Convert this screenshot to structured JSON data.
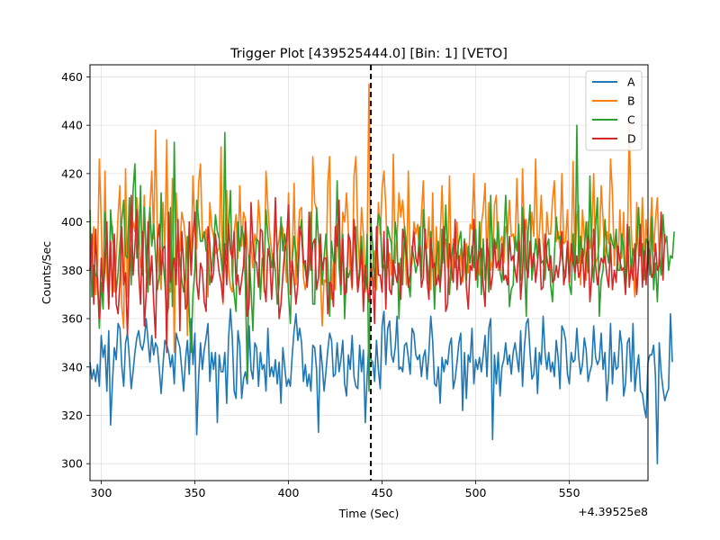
{
  "chart_data": {
    "type": "line",
    "title": "Trigger Plot [439525444.0] [Bin: 1] [VETO]",
    "xlabel": "Time (Sec)",
    "ylabel": "Counts/Sec",
    "x_offset_label": "+4.39525e8",
    "xlim": [
      294,
      592
    ],
    "ylim": [
      293,
      465
    ],
    "x_ticks": [
      300,
      350,
      400,
      450,
      500,
      550
    ],
    "y_ticks": [
      300,
      320,
      340,
      360,
      380,
      400,
      420,
      440,
      460
    ],
    "grid": true,
    "legend_position": "upper right",
    "trigger_line_x": 444,
    "x_start": 294,
    "x_step": 1,
    "series": [
      {
        "name": "A",
        "color": "#1f77b4",
        "values": [
          342,
          335,
          339,
          334,
          341,
          332,
          353,
          344,
          349,
          330,
          355,
          316,
          334,
          348,
          343,
          358,
          356,
          340,
          332,
          350,
          354,
          344,
          331,
          338,
          346,
          352,
          355,
          349,
          347,
          351,
          360,
          351,
          342,
          353,
          345,
          350,
          348,
          339,
          329,
          341,
          351,
          349,
          346,
          340,
          345,
          333,
          354,
          351,
          348,
          339,
          330,
          343,
          351,
          337,
          360,
          341,
          354,
          312,
          335,
          350,
          339,
          347,
          352,
          358,
          334,
          346,
          339,
          346,
          317,
          345,
          338,
          338,
          346,
          325,
          352,
          364,
          352,
          330,
          327,
          355,
          349,
          327,
          335,
          338,
          333,
          357,
          339,
          335,
          350,
          348,
          332,
          346,
          339,
          341,
          330,
          356,
          336,
          340,
          336,
          343,
          333,
          342,
          325,
          348,
          340,
          332,
          335,
          332,
          345,
          355,
          362,
          351,
          356,
          350,
          334,
          341,
          332,
          337,
          330,
          349,
          348,
          339,
          313,
          349,
          341,
          330,
          338,
          347,
          354,
          351,
          336,
          337,
          350,
          338,
          343,
          351,
          333,
          328,
          345,
          339,
          353,
          336,
          332,
          331,
          349,
          338,
          347,
          317,
          336,
          351,
          343,
          342,
          334,
          351,
          339,
          331,
          357,
          363,
          341,
          356,
          359,
          345,
          342,
          348,
          361,
          339,
          340,
          338,
          349,
          350,
          344,
          337,
          356,
          354,
          345,
          343,
          345,
          336,
          344,
          347,
          335,
          346,
          361,
          351,
          333,
          332,
          340,
          325,
          344,
          338,
          343,
          341,
          349,
          352,
          331,
          335,
          342,
          350,
          354,
          322,
          346,
          327,
          345,
          342,
          356,
          333,
          343,
          339,
          344,
          338,
          345,
          353,
          336,
          356,
          360,
          310,
          345,
          333,
          346,
          328,
          340,
          343,
          350,
          341,
          345,
          337,
          346,
          350,
          344,
          338,
          355,
          332,
          348,
          358,
          360,
          346,
          335,
          337,
          348,
          329,
          346,
          341,
          361,
          346,
          339,
          346,
          338,
          342,
          336,
          351,
          344,
          331,
          357,
          355,
          351,
          337,
          333,
          346,
          342,
          343,
          356,
          344,
          337,
          341,
          352,
          347,
          334,
          338,
          341,
          357,
          344,
          341,
          343,
          354,
          339,
          346,
          326,
          337,
          358,
          333,
          346,
          339,
          340,
          355,
          349,
          328,
          333,
          350,
          352,
          334,
          358,
          330,
          339,
          345,
          330,
          329,
          323,
          319,
          342,
          345,
          345,
          349,
          336,
          300,
          350,
          338,
          331,
          326,
          329,
          331,
          362,
          342
        ]
      },
      {
        "name": "B",
        "color": "#ff7f0e",
        "values": [
          385,
          385,
          398,
          370,
          383,
          426,
          400,
          368,
          421,
          379,
          366,
          400,
          398,
          371,
          384,
          403,
          415,
          365,
          356,
          422,
          369,
          407,
          392,
          400,
          396,
          410,
          398,
          381,
          387,
          411,
          379,
          397,
          406,
          421,
          393,
          438,
          394,
          380,
          372,
          408,
          389,
          434,
          373,
          371,
          418,
          346,
          412,
          395,
          388,
          404,
          400,
          393,
          353,
          398,
          384,
          419,
          396,
          389,
          416,
          424,
          393,
          394,
          397,
          369,
          408,
          398,
          394,
          387,
          388,
          389,
          431,
          366,
          389,
          413,
          381,
          373,
          371,
          396,
          403,
          385,
          415,
          390,
          404,
          401,
          391,
          383,
          392,
          381,
          395,
          391,
          409,
          397,
          396,
          371,
          421,
          406,
          395,
          388,
          381,
          403,
          388,
          393,
          400,
          397,
          386,
          375,
          412,
          381,
          384,
          416,
          374,
          393,
          405,
          406,
          377,
          372,
          377,
          395,
          385,
          427,
          408,
          405,
          393,
          378,
          357,
          376,
          375,
          416,
          427,
          368,
          384,
          372,
          399,
          384,
          379,
          404,
          400,
          412,
          396,
          380,
          372,
          419,
          427,
          395,
          381,
          406,
          395,
          371,
          389,
          457,
          375,
          382,
          388,
          372,
          408,
          395,
          414,
          421,
          406,
          381,
          387,
          378,
          428,
          383,
          394,
          412,
          402,
          409,
          397,
          374,
          421,
          380,
          383,
          400,
          395,
          399,
          386,
          403,
          417,
          390,
          389,
          402,
          372,
          412,
          369,
          398,
          377,
          393,
          415,
          389,
          393,
          381,
          419,
          376,
          393,
          387,
          400,
          380,
          389,
          375,
          380,
          391,
          379,
          399,
          397,
          420,
          392,
          382,
          378,
          399,
          405,
          416,
          383,
          408,
          380,
          384,
          407,
          411,
          380,
          392,
          394,
          383,
          398,
          395,
          409,
          394,
          395,
          389,
          418,
          390,
          376,
          422,
          395,
          401,
          383,
          386,
          404,
          394,
          426,
          389,
          395,
          411,
          391,
          378,
          404,
          395,
          395,
          409,
          417,
          392,
          396,
          389,
          420,
          391,
          392,
          405,
          379,
          386,
          425,
          384,
          402,
          407,
          374,
          405,
          394,
          376,
          400,
          389,
          396,
          420,
          383,
          385,
          391,
          415,
          401,
          383,
          396,
          391,
          426,
          412,
          382,
          395,
          382,
          405,
          385,
          404,
          371,
          389,
          441,
          398,
          381,
          369,
          408,
          386,
          386,
          410,
          383,
          401,
          388,
          393,
          410,
          388,
          401,
          410,
          386
        ]
      },
      {
        "name": "C",
        "color": "#2ca02c",
        "values": [
          405,
          369,
          382,
          378,
          377,
          356,
          375,
          364,
          404,
          393,
          365,
          405,
          393,
          390,
          371,
          379,
          391,
          401,
          409,
          386,
          385,
          410,
          374,
          413,
          424,
          385,
          391,
          415,
          378,
          406,
          387,
          371,
          406,
          390,
          399,
          386,
          372,
          378,
          412,
          384,
          375,
          361,
          365,
          406,
          365,
          433,
          382,
          393,
          384,
          376,
          371,
          377,
          394,
          362,
          346,
          370,
          380,
          409,
          401,
          392,
          392,
          396,
          388,
          388,
          374,
          380,
          389,
          403,
          396,
          393,
          385,
          377,
          437,
          384,
          397,
          413,
          378,
          370,
          363,
          400,
          388,
          398,
          394,
          374,
          335,
          386,
          372,
          355,
          383,
          393,
          392,
          368,
          385,
          380,
          405,
          394,
          388,
          381,
          387,
          380,
          366,
          374,
          402,
          388,
          395,
          387,
          370,
          358,
          384,
          394,
          387,
          377,
          395,
          401,
          384,
          380,
          374,
          381,
          404,
          366,
          366,
          406,
          393,
          389,
          374,
          385,
          395,
          382,
          361,
          392,
          384,
          383,
          417,
          382,
          370,
          395,
          360,
          381,
          377,
          380,
          380,
          396,
          398,
          372,
          381,
          394,
          377,
          372,
          395,
          330,
          400,
          390,
          373,
          393,
          403,
          401,
          381,
          382,
          377,
          398,
          394,
          391,
          374,
          400,
          392,
          360,
          385,
          374,
          398,
          390,
          376,
          369,
          390,
          385,
          379,
          383,
          398,
          377,
          405,
          393,
          384,
          374,
          396,
          384,
          364,
          385,
          392,
          371,
          397,
          383,
          407,
          386,
          370,
          385,
          391,
          381,
          385,
          392,
          396,
          382,
          393,
          376,
          390,
          383,
          390,
          381,
          397,
          373,
          400,
          370,
          393,
          376,
          388,
          371,
          411,
          385,
          393,
          389,
          400,
          379,
          375,
          392,
          411,
          391,
          365,
          372,
          374,
          394,
          388,
          399,
          376,
          406,
          384,
          361,
          396,
          407,
          376,
          384,
          393,
          385,
          393,
          383,
          384,
          376,
          390,
          393,
          374,
          367,
          386,
          402,
          393,
          394,
          386,
          381,
          377,
          391,
          374,
          370,
          395,
          376,
          440,
          383,
          394,
          383,
          389,
          400,
          379,
          419,
          386,
          375,
          398,
          410,
          361,
          376,
          380,
          401,
          388,
          383,
          395,
          391,
          389,
          397,
          380,
          380,
          395,
          389,
          371,
          383,
          398,
          379,
          389,
          384,
          391,
          406,
          386,
          391,
          376,
          393,
          391,
          378,
          402,
          372,
          383,
          367,
          387,
          378,
          403,
          391,
          394,
          380,
          386,
          385,
          396
        ]
      },
      {
        "name": "D",
        "color": "#d62728",
        "values": [
          380,
          395,
          366,
          397,
          375,
          360,
          385,
          371,
          381,
          400,
          364,
          392,
          369,
          395,
          366,
          362,
          375,
          398,
          374,
          379,
          353,
          380,
          411,
          378,
          390,
          405,
          379,
          366,
          396,
          357,
          370,
          400,
          374,
          386,
          367,
          352,
          392,
          399,
          378,
          389,
          390,
          346,
          404,
          375,
          381,
          385,
          374,
          401,
          355,
          396,
          383,
          364,
          366,
          400,
          378,
          395,
          404,
          375,
          368,
          383,
          380,
          367,
          363,
          398,
          391,
          375,
          379,
          395,
          386,
          379,
          375,
          367,
          391,
          374,
          399,
          388,
          385,
          396,
          374,
          378,
          370,
          376,
          382,
          400,
          361,
          366,
          408,
          391,
          384,
          383,
          373,
          397,
          396,
          374,
          367,
          389,
          385,
          368,
          383,
          410,
          386,
          360,
          366,
          378,
          388,
          393,
          407,
          370,
          384,
          376,
          366,
          374,
          398,
          394,
          383,
          384,
          373,
          404,
          380,
          391,
          393,
          372,
          377,
          395,
          380,
          385,
          385,
          362,
          375,
          374,
          365,
          398,
          390,
          409,
          374,
          393,
          370,
          371,
          395,
          392,
          373,
          401,
          385,
          371,
          378,
          389,
          363,
          382,
          373,
          367,
          382,
          376,
          358,
          398,
          378,
          378,
          371,
          396,
          364,
          393,
          372,
          370,
          384,
          379,
          375,
          383,
          368,
          397,
          392,
          386,
          373,
          378,
          387,
          396,
          385,
          382,
          390,
          373,
          377,
          397,
          376,
          368,
          393,
          381,
          383,
          374,
          378,
          373,
          383,
          398,
          363,
          366,
          391,
          381,
          375,
          401,
          372,
          386,
          374,
          379,
          392,
          373,
          364,
          382,
          380,
          401,
          376,
          383,
          387,
          389,
          374,
          365,
          393,
          385,
          372,
          378,
          392,
          381,
          384,
          380,
          391,
          376,
          378,
          374,
          394,
          384,
          386,
          380,
          375,
          392,
          368,
          379,
          401,
          381,
          377,
          392,
          381,
          387,
          375,
          383,
          393,
          372,
          373,
          395,
          385,
          380,
          386,
          375,
          376,
          382,
          377,
          384,
          396,
          374,
          379,
          392,
          375,
          391,
          384,
          379,
          386,
          377,
          380,
          389,
          373,
          385,
          394,
          367,
          378,
          397,
          382,
          374,
          380,
          385,
          383,
          386,
          378,
          373,
          391,
          372,
          380,
          375,
          390,
          384,
          380,
          381,
          370,
          399,
          373,
          382,
          376,
          391,
          370,
          383,
          399,
          373,
          388,
          374,
          392,
          386,
          377,
          379,
          391,
          380,
          382,
          404,
          376,
          395
        ]
      }
    ]
  }
}
